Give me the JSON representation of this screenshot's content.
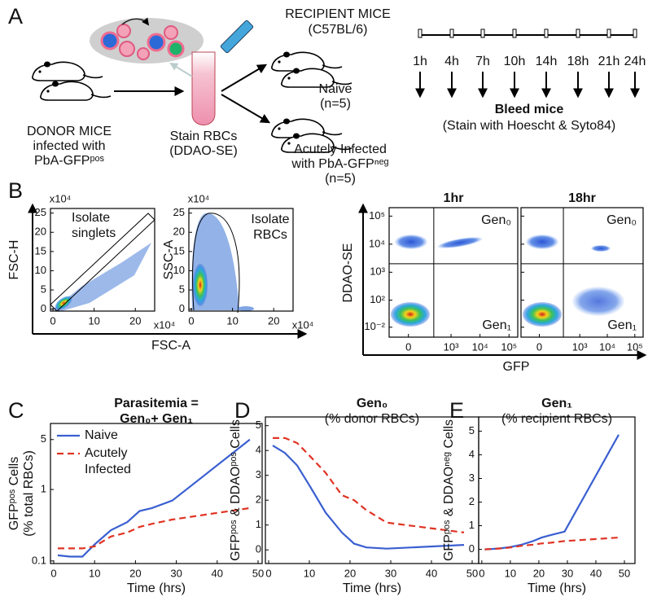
{
  "panel_a": {
    "letter": "A",
    "recipient": [
      "RECIPIENT MICE",
      "(C57BL/6)"
    ],
    "naive": [
      "Naive",
      "(n=5)"
    ],
    "acute": [
      "Acutely Infected",
      "with PbA-GFPⁿᵉᵍ",
      "(n=5)"
    ],
    "donor": [
      "DONOR MICE",
      "infected with",
      "PbA-GFPᵖᵒˢ"
    ],
    "stain": [
      "Stain RBCs",
      "(DDAO-SE)"
    ],
    "times": [
      "1h",
      "4h",
      "7h",
      "10h",
      "14h",
      "18h",
      "21h",
      "24h"
    ],
    "bleed": "Bleed mice",
    "bleed_note": "(Stain with Hoescht & Syto84)"
  },
  "panel_b": {
    "letter": "B",
    "xlabel_left": "FSC-A",
    "xlabel_right": "GFP",
    "ylabel_right": "DDAO-SE"
  },
  "chart_data": [
    {
      "type": "density",
      "ylabel": [
        "FSC-H"
      ],
      "annotation": [
        "Isolate",
        "singlets"
      ],
      "x_multiplier": "x10⁴",
      "y_multiplier": "x10⁴",
      "xscale": "linear",
      "yscale": "linear",
      "xlim": [
        -0.6,
        24.7
      ],
      "ylim": [
        -0.5,
        26.2
      ],
      "xticks": [
        0,
        10,
        20
      ],
      "yticks": [
        0,
        5,
        10,
        15,
        20,
        25
      ]
    },
    {
      "type": "density",
      "ylabel": [
        "SSC-A"
      ],
      "annotation": [
        "Isolate",
        "RBCs"
      ],
      "x_multiplier": "x10⁴",
      "y_multiplier": "x10⁴",
      "xscale": "linear",
      "yscale": "linear",
      "xlim": [
        -0.6,
        24.7
      ],
      "ylim": [
        -0.5,
        26.2
      ],
      "xticks": [
        0,
        10,
        20
      ],
      "yticks": [
        0,
        5,
        10,
        15,
        20,
        25
      ]
    },
    {
      "type": "density",
      "title": "1hr",
      "xscale": "biexponential",
      "yscale": "biexponential",
      "xlim": [
        -150,
        200000
      ],
      "ylim": [
        -20,
        200000
      ],
      "xticks": [
        0,
        {
          "value": 1000,
          "label": "10³"
        },
        {
          "value": 10000,
          "label": "10⁴"
        },
        {
          "value": 100000,
          "label": "10⁵"
        }
      ],
      "yticks": [
        {
          "value": 0.01,
          "label": "10⁻²"
        },
        {
          "value": 100,
          "label": "10²"
        },
        {
          "value": 1000,
          "label": "10³"
        },
        {
          "value": 10000,
          "label": "10⁴"
        },
        {
          "value": 100000,
          "label": "10⁵"
        }
      ],
      "gates": {
        "x": 250,
        "y": 2000
      },
      "quadrant_labels": [
        "Gen₀",
        "Gen₁"
      ]
    },
    {
      "type": "density",
      "title": "18hr",
      "xscale": "biexponential",
      "yscale": "biexponential",
      "xlim": [
        -150,
        200000
      ],
      "ylim": [
        -20,
        200000
      ],
      "xticks": [
        0,
        {
          "value": 1000,
          "label": "10³"
        },
        {
          "value": 10000,
          "label": "10⁴"
        },
        {
          "value": 100000,
          "label": "10⁵"
        }
      ],
      "yticks": [
        0.01,
        100,
        1000,
        10000,
        100000
      ],
      "show_ytick_labels": false,
      "gates": {
        "x": 250,
        "y": 2000
      },
      "quadrant_labels": [
        "Gen₀",
        "Gen₁"
      ]
    },
    {
      "type": "line",
      "panel": "C",
      "title": "Parasitemia =",
      "subtitle": "Gen₀+ Gen₁",
      "ylabel": [
        "GFPᵖᵒˢ Cells",
        "(% total RBCs)"
      ],
      "xlabel": "Time (hrs)",
      "yscale": "log",
      "xscale": "linear",
      "xlim": [
        -0.8,
        51
      ],
      "ylim": [
        0.092,
        8.4
      ],
      "xticks": [
        0,
        10,
        20,
        30,
        40,
        50
      ],
      "yticks": [
        0.1,
        1,
        5
      ],
      "legend": "upper left",
      "x": [
        1,
        4,
        7,
        10,
        14,
        18,
        21,
        24,
        29,
        48
      ],
      "series": [
        {
          "name": "Naive",
          "color": "#3a5fd0",
          "linestyle": "solid",
          "values": [
            0.12,
            0.115,
            0.115,
            0.17,
            0.27,
            0.35,
            0.5,
            0.55,
            0.7,
            5
          ]
        },
        {
          "name": "Acutely Infected",
          "color": "#e03424",
          "linestyle": "dashed",
          "values": [
            0.15,
            0.15,
            0.15,
            0.16,
            0.22,
            0.25,
            0.3,
            0.33,
            0.38,
            0.55
          ]
        }
      ]
    },
    {
      "type": "line",
      "panel": "D",
      "title": "Gen₀",
      "subtitle": "(% donor RBCs)",
      "ylabel": [
        "GFPᵖᵒˢ & DDAOᵖᵒˢ Cells"
      ],
      "xlabel": "Time (hrs)",
      "yscale": "linear",
      "xscale": "linear",
      "xlim": [
        -0.8,
        51.6
      ],
      "ylim": [
        -0.55,
        5.35
      ],
      "xticks": [
        0,
        10,
        20,
        30,
        40,
        50
      ],
      "yticks": [
        0,
        1,
        2,
        3,
        4,
        5
      ],
      "x": [
        1,
        4,
        7,
        10,
        14,
        18,
        21,
        24,
        29,
        48
      ],
      "series": [
        {
          "name": "Naive",
          "color": "#3a5fd0",
          "linestyle": "solid",
          "values": [
            4.2,
            3.9,
            3.4,
            2.6,
            1.5,
            0.7,
            0.25,
            0.1,
            0.05,
            0.2
          ]
        },
        {
          "name": "Acutely Infected",
          "color": "#e03424",
          "linestyle": "dashed",
          "values": [
            4.5,
            4.5,
            4.3,
            3.8,
            3.1,
            2.2,
            2.0,
            1.6,
            1.1,
            0.7
          ]
        }
      ]
    },
    {
      "type": "line",
      "panel": "E",
      "title": "Gen₁",
      "subtitle": "(% recipient RBCs)",
      "ylabel": [
        "GFPᵖᵒˢ & DDAOⁿᵉᵍ Cells"
      ],
      "xlabel": "Time (hrs)",
      "yscale": "linear",
      "xscale": "linear",
      "xlim": [
        -1.1,
        53.7
      ],
      "ylim": [
        -0.6,
        5.6
      ],
      "xticks": [
        0,
        10,
        20,
        30,
        40,
        50
      ],
      "yticks": [
        0,
        1,
        2,
        3,
        4,
        5
      ],
      "x": [
        1,
        4,
        7,
        10,
        14,
        18,
        21,
        24,
        29,
        48
      ],
      "series": [
        {
          "name": "Naive",
          "color": "#3a5fd0",
          "linestyle": "solid",
          "values": [
            0,
            0.02,
            0.05,
            0.1,
            0.2,
            0.35,
            0.5,
            0.6,
            0.75,
            4.85
          ]
        },
        {
          "name": "Acutely Infected",
          "color": "#e03424",
          "linestyle": "dashed",
          "values": [
            0,
            0.02,
            0.04,
            0.08,
            0.15,
            0.2,
            0.25,
            0.28,
            0.35,
            0.5
          ]
        }
      ]
    }
  ]
}
